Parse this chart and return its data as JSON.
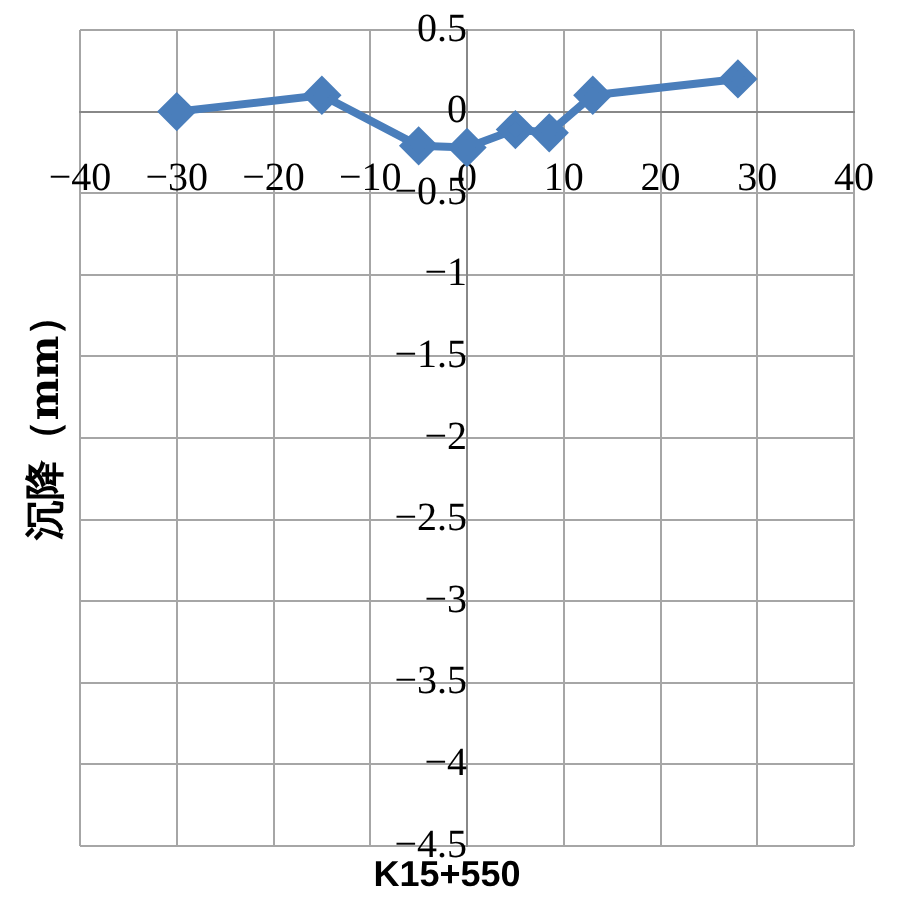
{
  "chart_data": {
    "type": "line",
    "xlabel": "K15+550",
    "ylabel": "沉降（mm）",
    "x": [
      -30,
      -15,
      -5,
      0,
      5,
      8.5,
      13,
      28
    ],
    "series": [
      {
        "color": "#4a7ebb",
        "values": [
          0,
          0.1,
          -0.21,
          -0.22,
          -0.11,
          -0.13,
          0.1,
          0.2
        ]
      }
    ],
    "xlim": [
      -40,
      40
    ],
    "xticks": [
      -40,
      -30,
      -20,
      -10,
      0,
      10,
      20,
      30,
      40
    ],
    "ylim": [
      -4.5,
      0.5
    ],
    "yticks": [
      0.5,
      0,
      -0.5,
      -1,
      -1.5,
      -2,
      -2.5,
      -3,
      -3.5,
      -4,
      -4.5
    ],
    "grid": true,
    "legend": false,
    "marker": "diamond",
    "line_style": "solid"
  }
}
